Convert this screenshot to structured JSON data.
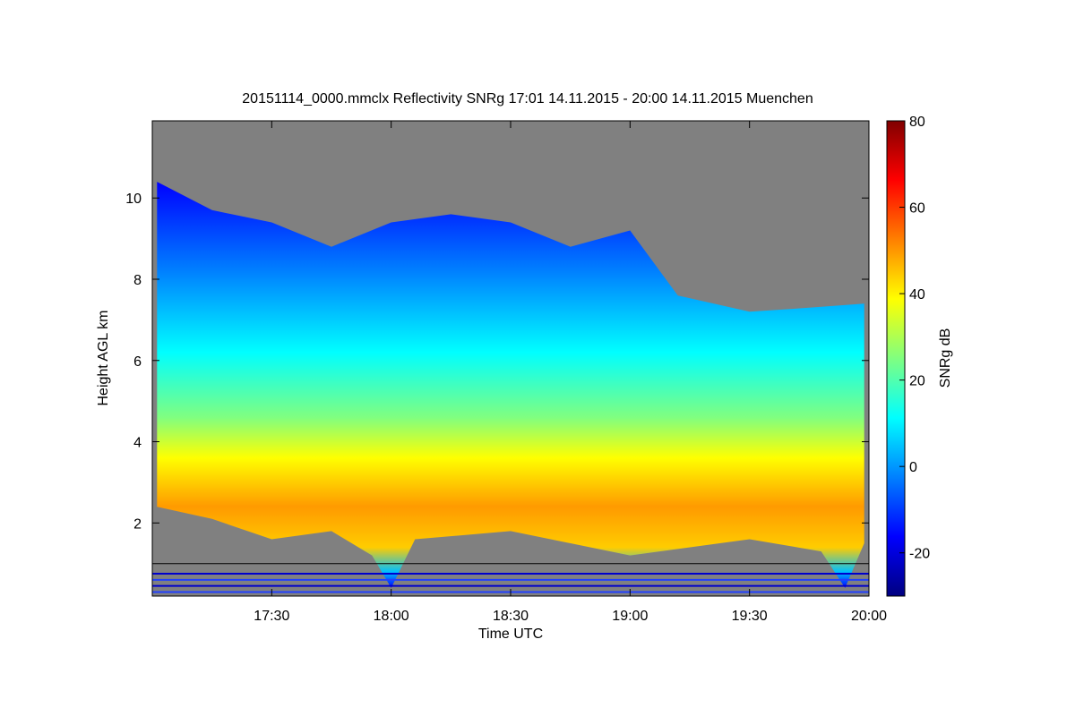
{
  "chart_data": {
    "type": "heatmap",
    "title": "20151114_0000.mmclx Reflectivity SNRg   17:01 14.11.2015 - 20:00 14.11.2015 Muenchen",
    "xlabel": "Time UTC",
    "ylabel": "Height AGL km",
    "x_range_hours": [
      17.0,
      20.0
    ],
    "y_range_km": [
      0.2,
      11.9
    ],
    "x_ticks": [
      {
        "value": 17.5,
        "label": "17:30"
      },
      {
        "value": 18.0,
        "label": "18:00"
      },
      {
        "value": 18.5,
        "label": "18:30"
      },
      {
        "value": 19.0,
        "label": "19:00"
      },
      {
        "value": 19.5,
        "label": "19:30"
      },
      {
        "value": 20.0,
        "label": "20:00"
      }
    ],
    "y_ticks": [
      {
        "value": 2,
        "label": "2"
      },
      {
        "value": 4,
        "label": "4"
      },
      {
        "value": 6,
        "label": "6"
      },
      {
        "value": 8,
        "label": "8"
      },
      {
        "value": 10,
        "label": "10"
      }
    ],
    "reference_line_km": 1.0,
    "no_data_color": "#808080",
    "colorbar": {
      "label": "SNRg dB",
      "range": [
        -30,
        80
      ],
      "ticks": [
        {
          "value": -20,
          "label": "-20"
        },
        {
          "value": 0,
          "label": "0"
        },
        {
          "value": 20,
          "label": "20"
        },
        {
          "value": 40,
          "label": "40"
        },
        {
          "value": 60,
          "label": "60"
        },
        {
          "value": 80,
          "label": "80"
        }
      ],
      "colormap": [
        "#000080",
        "#0000ff",
        "#0080ff",
        "#00ffff",
        "#80ff80",
        "#ffff00",
        "#ff8000",
        "#ff0000",
        "#800000"
      ]
    },
    "cloud_top_km": [
      {
        "t": 17.02,
        "h": 10.4
      },
      {
        "t": 17.25,
        "h": 9.7
      },
      {
        "t": 17.5,
        "h": 9.4
      },
      {
        "t": 17.75,
        "h": 8.8
      },
      {
        "t": 18.0,
        "h": 9.4
      },
      {
        "t": 18.25,
        "h": 9.6
      },
      {
        "t": 18.5,
        "h": 9.4
      },
      {
        "t": 18.75,
        "h": 8.8
      },
      {
        "t": 19.0,
        "h": 9.2
      },
      {
        "t": 19.2,
        "h": 7.6
      },
      {
        "t": 19.5,
        "h": 7.2
      },
      {
        "t": 19.75,
        "h": 7.3
      },
      {
        "t": 19.98,
        "h": 7.4
      }
    ],
    "cloud_base_km": [
      {
        "t": 17.02,
        "h": 2.4
      },
      {
        "t": 17.25,
        "h": 2.1
      },
      {
        "t": 17.5,
        "h": 1.6
      },
      {
        "t": 17.75,
        "h": 1.8
      },
      {
        "t": 17.92,
        "h": 1.2
      },
      {
        "t": 18.0,
        "h": 0.4
      },
      {
        "t": 18.1,
        "h": 1.6
      },
      {
        "t": 18.5,
        "h": 1.8
      },
      {
        "t": 19.0,
        "h": 1.2
      },
      {
        "t": 19.5,
        "h": 1.6
      },
      {
        "t": 19.8,
        "h": 1.3
      },
      {
        "t": 19.9,
        "h": 0.4
      },
      {
        "t": 19.98,
        "h": 1.5
      }
    ],
    "max_signal_layer_km": [
      2.4,
      4.2
    ]
  }
}
